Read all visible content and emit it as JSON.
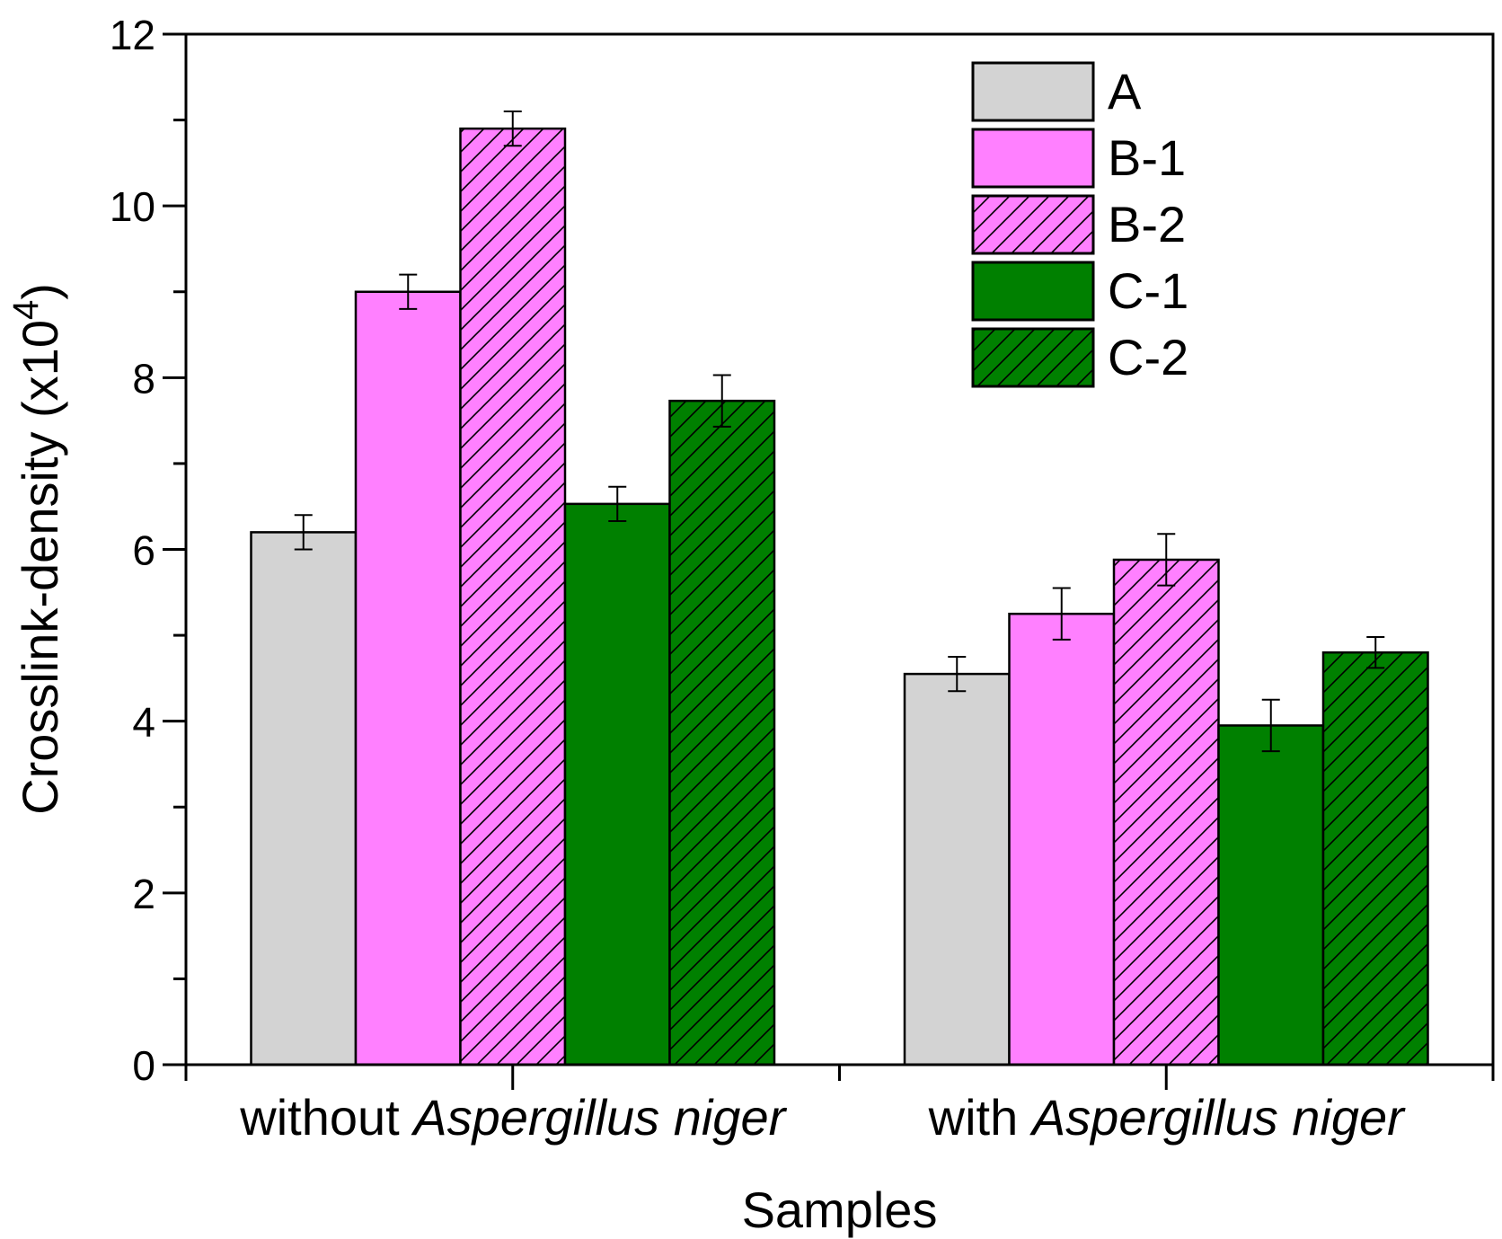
{
  "chart_data": {
    "type": "bar",
    "categories": [
      {
        "prefix": "without ",
        "italic": "Aspergillus niger"
      },
      {
        "prefix": "with ",
        "italic": "Aspergillus niger"
      }
    ],
    "series": [
      {
        "name": "A",
        "color": "#d3d3d3",
        "hatch": false,
        "values": [
          6.2,
          4.55
        ],
        "errors": [
          0.2,
          0.2
        ]
      },
      {
        "name": "B-1",
        "color": "#ff80ff",
        "hatch": false,
        "values": [
          9.0,
          5.25
        ],
        "errors": [
          0.2,
          0.3
        ]
      },
      {
        "name": "B-2",
        "color": "#ff80ff",
        "hatch": true,
        "values": [
          10.9,
          5.88
        ],
        "errors": [
          0.2,
          0.3
        ]
      },
      {
        "name": "C-1",
        "color": "#008000",
        "hatch": false,
        "values": [
          6.53,
          3.95
        ],
        "errors": [
          0.2,
          0.3
        ]
      },
      {
        "name": "C-2",
        "color": "#008000",
        "hatch": true,
        "values": [
          7.73,
          4.8
        ],
        "errors": [
          0.3,
          0.18
        ]
      }
    ],
    "xlabel": "Samples",
    "ylabel": "Crosslink-density (x10",
    "ylabel_exponent": "4",
    "ylabel_suffix": ")",
    "ylim": [
      0,
      12
    ],
    "yticks": [
      "0",
      "2",
      "4",
      "6",
      "8",
      "10",
      "12"
    ],
    "legend_position": "top-right"
  }
}
